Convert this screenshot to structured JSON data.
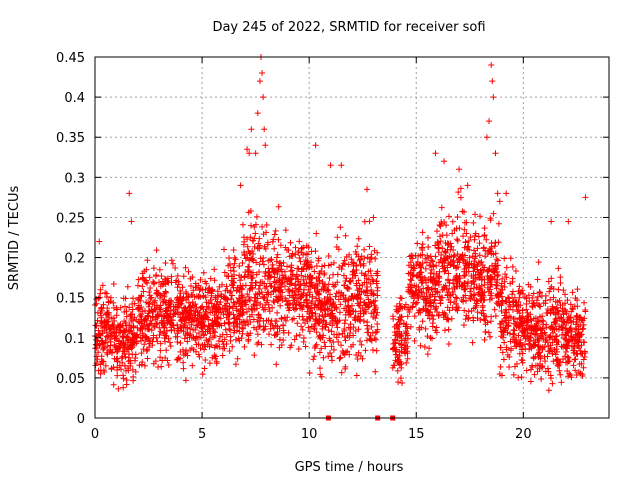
{
  "chart_data": {
    "type": "scatter",
    "title": "Day 245 of 2022, SRMTID for receiver sofi",
    "xlabel": "GPS time / hours",
    "ylabel": "SRMTID / TECUs",
    "xlim": [
      0,
      24
    ],
    "ylim": [
      0,
      0.45
    ],
    "xticks": [
      0,
      5,
      10,
      15,
      20
    ],
    "yticks": [
      0,
      0.05,
      0.1,
      0.15,
      0.2,
      0.25,
      0.3,
      0.35,
      0.4,
      0.45
    ],
    "grid": true,
    "marker": "+",
    "color": "#ff0000",
    "zero_markers_x": [
      10.9,
      13.2,
      13.9
    ],
    "segments": [
      {
        "x_start": 0.0,
        "x_end": 0.9,
        "mean": 0.11,
        "spread": 0.035
      },
      {
        "x_start": 0.9,
        "x_end": 2.0,
        "mean": 0.095,
        "spread": 0.035
      },
      {
        "x_start": 2.0,
        "x_end": 4.0,
        "mean": 0.13,
        "spread": 0.04
      },
      {
        "x_start": 4.0,
        "x_end": 6.0,
        "mean": 0.125,
        "spread": 0.04
      },
      {
        "x_start": 6.0,
        "x_end": 6.9,
        "mean": 0.14,
        "spread": 0.04
      },
      {
        "x_start": 6.9,
        "x_end": 8.0,
        "mean": 0.17,
        "spread": 0.055
      },
      {
        "x_start": 8.0,
        "x_end": 10.0,
        "mean": 0.16,
        "spread": 0.05
      },
      {
        "x_start": 10.0,
        "x_end": 12.0,
        "mean": 0.14,
        "spread": 0.05
      },
      {
        "x_start": 12.0,
        "x_end": 13.2,
        "mean": 0.145,
        "spread": 0.05
      },
      {
        "x_start": 13.9,
        "x_end": 14.6,
        "mean": 0.1,
        "spread": 0.035
      },
      {
        "x_start": 14.6,
        "x_end": 16.0,
        "mean": 0.16,
        "spread": 0.045
      },
      {
        "x_start": 16.0,
        "x_end": 17.5,
        "mean": 0.185,
        "spread": 0.05
      },
      {
        "x_start": 17.5,
        "x_end": 18.9,
        "mean": 0.175,
        "spread": 0.05
      },
      {
        "x_start": 18.9,
        "x_end": 20.0,
        "mean": 0.12,
        "spread": 0.045
      },
      {
        "x_start": 20.0,
        "x_end": 22.0,
        "mean": 0.11,
        "spread": 0.04
      },
      {
        "x_start": 22.0,
        "x_end": 22.9,
        "mean": 0.1,
        "spread": 0.04
      }
    ],
    "peaks": [
      {
        "x": 7.5,
        "y": 0.33
      },
      {
        "x": 7.6,
        "y": 0.38
      },
      {
        "x": 7.7,
        "y": 0.42
      },
      {
        "x": 7.75,
        "y": 0.45
      },
      {
        "x": 7.8,
        "y": 0.43
      },
      {
        "x": 7.85,
        "y": 0.4
      },
      {
        "x": 7.9,
        "y": 0.36
      },
      {
        "x": 7.95,
        "y": 0.34
      },
      {
        "x": 7.1,
        "y": 0.335
      },
      {
        "x": 7.2,
        "y": 0.33
      },
      {
        "x": 6.8,
        "y": 0.29
      },
      {
        "x": 7.3,
        "y": 0.36
      },
      {
        "x": 10.3,
        "y": 0.34
      },
      {
        "x": 11.0,
        "y": 0.315
      },
      {
        "x": 11.5,
        "y": 0.315
      },
      {
        "x": 12.7,
        "y": 0.285
      },
      {
        "x": 13.0,
        "y": 0.25
      },
      {
        "x": 15.9,
        "y": 0.33
      },
      {
        "x": 16.3,
        "y": 0.32
      },
      {
        "x": 17.0,
        "y": 0.31
      },
      {
        "x": 18.3,
        "y": 0.35
      },
      {
        "x": 18.4,
        "y": 0.37
      },
      {
        "x": 18.5,
        "y": 0.44
      },
      {
        "x": 18.55,
        "y": 0.42
      },
      {
        "x": 18.6,
        "y": 0.4
      },
      {
        "x": 18.7,
        "y": 0.33
      },
      {
        "x": 18.8,
        "y": 0.28
      },
      {
        "x": 18.9,
        "y": 0.27
      },
      {
        "x": 22.9,
        "y": 0.275
      },
      {
        "x": 1.6,
        "y": 0.28
      },
      {
        "x": 1.7,
        "y": 0.245
      },
      {
        "x": 0.2,
        "y": 0.22
      },
      {
        "x": 21.3,
        "y": 0.245
      },
      {
        "x": 22.1,
        "y": 0.245
      },
      {
        "x": 19.2,
        "y": 0.28
      },
      {
        "x": 17.4,
        "y": 0.29
      }
    ]
  }
}
